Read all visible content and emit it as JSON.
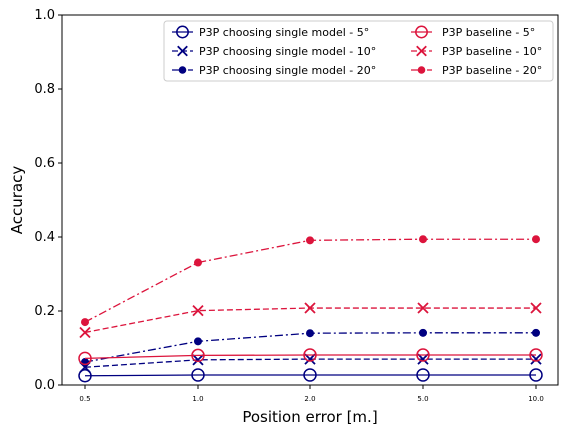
{
  "chart_data": {
    "type": "line",
    "xlabel": "Position error [m.]",
    "ylabel": "Accuracy",
    "categories": [
      "0.5",
      "1.0",
      "2.0",
      "5.0",
      "10.0"
    ],
    "yticks": [
      "0.0",
      "0.2",
      "0.4",
      "0.6",
      "0.8",
      "1.0"
    ],
    "ylim": [
      0,
      1
    ],
    "grid": false,
    "legend_position": "top-right",
    "series": [
      {
        "name": "P3P choosing single model - 5°",
        "color": "#000080",
        "line": "solid",
        "marker": "circle-open",
        "values": [
          0.025,
          0.027,
          0.027,
          0.027,
          0.027
        ]
      },
      {
        "name": "P3P choosing single model - 10°",
        "color": "#000080",
        "line": "dashed",
        "marker": "x",
        "values": [
          0.048,
          0.068,
          0.07,
          0.07,
          0.07
        ]
      },
      {
        "name": "P3P choosing single model - 20°",
        "color": "#000080",
        "line": "dashdot",
        "marker": "dot",
        "values": [
          0.062,
          0.118,
          0.14,
          0.141,
          0.141
        ]
      },
      {
        "name": "P3P baseline - 5°",
        "color": "#DC143C",
        "line": "solid",
        "marker": "circle-open",
        "values": [
          0.072,
          0.08,
          0.081,
          0.081,
          0.081
        ]
      },
      {
        "name": "P3P baseline - 10°",
        "color": "#DC143C",
        "line": "dashed",
        "marker": "x",
        "values": [
          0.142,
          0.201,
          0.208,
          0.208,
          0.208
        ]
      },
      {
        "name": "P3P baseline - 20°",
        "color": "#DC143C",
        "line": "dashdot",
        "marker": "dot",
        "values": [
          0.17,
          0.331,
          0.391,
          0.394,
          0.394
        ]
      }
    ]
  }
}
